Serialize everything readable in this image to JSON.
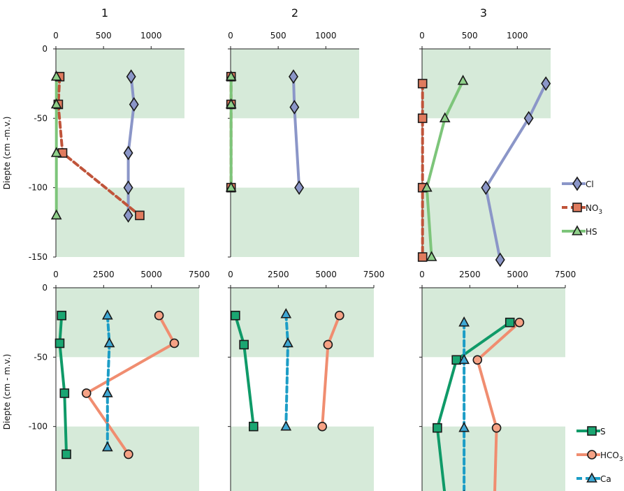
{
  "figure": {
    "panel_titles": [
      "1",
      "2",
      "3"
    ],
    "band_color": "#d6ead9"
  },
  "chart_data": [
    {
      "type": "line",
      "row": 0,
      "col": 0,
      "title": "1",
      "ylabel": "Diepte (cm -m.v.)",
      "xlim": [
        0,
        1350
      ],
      "xticks": [
        0,
        500,
        1000
      ],
      "ylim": [
        -150,
        0
      ],
      "yticks": [
        0,
        -50,
        -100,
        -150
      ],
      "bands": [
        [
          0,
          -50
        ],
        [
          -100,
          -150
        ]
      ],
      "series": [
        {
          "name": "Cl",
          "marker": "diamond",
          "dash": false,
          "points": [
            [
              790,
              -20
            ],
            [
              820,
              -40
            ],
            [
              760,
              -75
            ],
            [
              760,
              -100
            ],
            [
              760,
              -120
            ]
          ]
        },
        {
          "name": "NO3",
          "marker": "square",
          "dash": true,
          "points": [
            [
              40,
              -20
            ],
            [
              25,
              -40
            ],
            [
              70,
              -75
            ],
            [
              880,
              -120
            ]
          ]
        },
        {
          "name": "HS",
          "marker": "triangle",
          "dash": false,
          "points": [
            [
              5,
              -20
            ],
            [
              5,
              -40
            ],
            [
              5,
              -75
            ],
            [
              5,
              -120
            ]
          ]
        }
      ]
    },
    {
      "type": "line",
      "row": 0,
      "col": 1,
      "title": "2",
      "ylabel": "",
      "xlim": [
        0,
        1350
      ],
      "xticks": [
        0,
        500,
        1000
      ],
      "ylim": [
        -150,
        0
      ],
      "yticks": [
        0,
        -50,
        -100,
        -150
      ],
      "bands": [
        [
          0,
          -50
        ],
        [
          -100,
          -150
        ]
      ],
      "series": [
        {
          "name": "Cl",
          "marker": "diamond",
          "dash": false,
          "points": [
            [
              660,
              -20
            ],
            [
              670,
              -42
            ],
            [
              720,
              -100
            ]
          ]
        },
        {
          "name": "NO3",
          "marker": "square",
          "dash": true,
          "points": [
            [
              5,
              -20
            ],
            [
              5,
              -40
            ],
            [
              5,
              -100
            ]
          ]
        },
        {
          "name": "HS",
          "marker": "triangle",
          "dash": false,
          "points": [
            [
              5,
              -20
            ],
            [
              5,
              -40
            ],
            [
              5,
              -100
            ]
          ]
        }
      ]
    },
    {
      "type": "line",
      "row": 0,
      "col": 2,
      "title": "3",
      "ylabel": "",
      "xlim": [
        0,
        1350
      ],
      "xticks": [
        0,
        500,
        1000
      ],
      "ylim": [
        -150,
        0
      ],
      "yticks": [
        0,
        -50,
        -100,
        -150
      ],
      "bands": [
        [
          0,
          -50
        ],
        [
          -100,
          -150
        ]
      ],
      "series": [
        {
          "name": "Cl",
          "marker": "diamond",
          "dash": false,
          "points": [
            [
              1300,
              -25
            ],
            [
              1120,
              -50
            ],
            [
              670,
              -100
            ],
            [
              820,
              -152
            ]
          ]
        },
        {
          "name": "NO3",
          "marker": "square",
          "dash": true,
          "points": [
            [
              5,
              -25
            ],
            [
              5,
              -50
            ],
            [
              5,
              -100
            ],
            [
              5,
              -150
            ]
          ]
        },
        {
          "name": "HS",
          "marker": "triangle",
          "dash": false,
          "points": [
            [
              430,
              -23
            ],
            [
              240,
              -50
            ],
            [
              50,
              -100
            ],
            [
              100,
              -150
            ]
          ]
        }
      ],
      "legend": {
        "placement": "right",
        "entries": [
          {
            "label": "Cl",
            "marker": "diamond",
            "dash": false
          },
          {
            "label": "NO3",
            "marker": "square",
            "dash": true
          },
          {
            "label": "HS",
            "marker": "triangle",
            "dash": false
          }
        ]
      }
    },
    {
      "type": "line",
      "row": 1,
      "col": 0,
      "title": "",
      "ylabel": "Diepte (cm - m.v.)",
      "xlim": [
        0,
        7500
      ],
      "xticks": [
        0,
        2500,
        5000,
        7500
      ],
      "ylim": [
        -150,
        0
      ],
      "yticks": [
        0,
        -50,
        -100,
        -150
      ],
      "bands": [
        [
          0,
          -50
        ],
        [
          -100,
          -150
        ]
      ],
      "series": [
        {
          "name": "S",
          "marker": "square",
          "dash": false,
          "points": [
            [
              300,
              -20
            ],
            [
              200,
              -40
            ],
            [
              450,
              -76
            ],
            [
              550,
              -120
            ]
          ]
        },
        {
          "name": "HCO3",
          "marker": "circle",
          "dash": false,
          "points": [
            [
              5400,
              -20
            ],
            [
              6200,
              -40
            ],
            [
              1600,
              -76
            ],
            [
              3800,
              -120
            ]
          ]
        },
        {
          "name": "Ca",
          "marker": "triangle",
          "dash": true,
          "points": [
            [
              2700,
              -20
            ],
            [
              2800,
              -40
            ],
            [
              2700,
              -76
            ],
            [
              2700,
              -115
            ]
          ]
        }
      ]
    },
    {
      "type": "line",
      "row": 1,
      "col": 1,
      "title": "",
      "ylabel": "",
      "xlim": [
        0,
        7500
      ],
      "xticks": [
        0,
        2500,
        5000,
        7500
      ],
      "ylim": [
        -150,
        0
      ],
      "yticks": [
        0,
        -50,
        -100,
        -150
      ],
      "bands": [
        [
          0,
          -50
        ],
        [
          -100,
          -150
        ]
      ],
      "series": [
        {
          "name": "S",
          "marker": "square",
          "dash": false,
          "points": [
            [
              250,
              -20
            ],
            [
              700,
              -41
            ],
            [
              1200,
              -100
            ]
          ]
        },
        {
          "name": "HCO3",
          "marker": "circle",
          "dash": false,
          "points": [
            [
              5700,
              -20
            ],
            [
              5100,
              -41
            ],
            [
              4800,
              -100
            ]
          ]
        },
        {
          "name": "Ca",
          "marker": "triangle",
          "dash": true,
          "points": [
            [
              2900,
              -19
            ],
            [
              3000,
              -40
            ],
            [
              2900,
              -100
            ]
          ]
        }
      ]
    },
    {
      "type": "line",
      "row": 1,
      "col": 2,
      "title": "",
      "ylabel": "",
      "xlim": [
        0,
        7500
      ],
      "xticks": [
        0,
        2500,
        5000,
        7500
      ],
      "ylim": [
        -150,
        0
      ],
      "yticks": [
        0,
        -50,
        -100,
        -150
      ],
      "bands": [
        [
          0,
          -50
        ],
        [
          -100,
          -150
        ]
      ],
      "series": [
        {
          "name": "S",
          "marker": "square",
          "dash": false,
          "points": [
            [
              4600,
              -25
            ],
            [
              1800,
              -52
            ],
            [
              800,
              -101
            ],
            [
              1200,
              -150
            ]
          ]
        },
        {
          "name": "HCO3",
          "marker": "circle",
          "dash": false,
          "points": [
            [
              5100,
              -25
            ],
            [
              2900,
              -52
            ],
            [
              3900,
              -101
            ],
            [
              3800,
              -150
            ]
          ]
        },
        {
          "name": "Ca",
          "marker": "triangle",
          "dash": true,
          "points": [
            [
              2200,
              -25
            ],
            [
              2200,
              -52
            ],
            [
              2200,
              -101
            ],
            [
              2200,
              -150
            ]
          ]
        }
      ],
      "legend": {
        "placement": "right",
        "entries": [
          {
            "label": "S",
            "marker": "square",
            "dash": false
          },
          {
            "label": "HCO3",
            "marker": "circle",
            "dash": false
          },
          {
            "label": "Ca",
            "marker": "triangle",
            "dash": true
          }
        ]
      }
    }
  ],
  "series_styles": {
    "Cl": {
      "line": "#8b96c8",
      "fill": "#8b96c8"
    },
    "NO3": {
      "line": "#c0543a",
      "fill": "#e07b5e"
    },
    "HS": {
      "line": "#7dc57a",
      "fill": "#8fd08a"
    },
    "S": {
      "line": "#0f9a68",
      "fill": "#1aa672"
    },
    "HCO3": {
      "line": "#f08d70",
      "fill": "#f6a285"
    },
    "Ca": {
      "line": "#1c9dc6",
      "fill": "#3fa8d4"
    }
  }
}
